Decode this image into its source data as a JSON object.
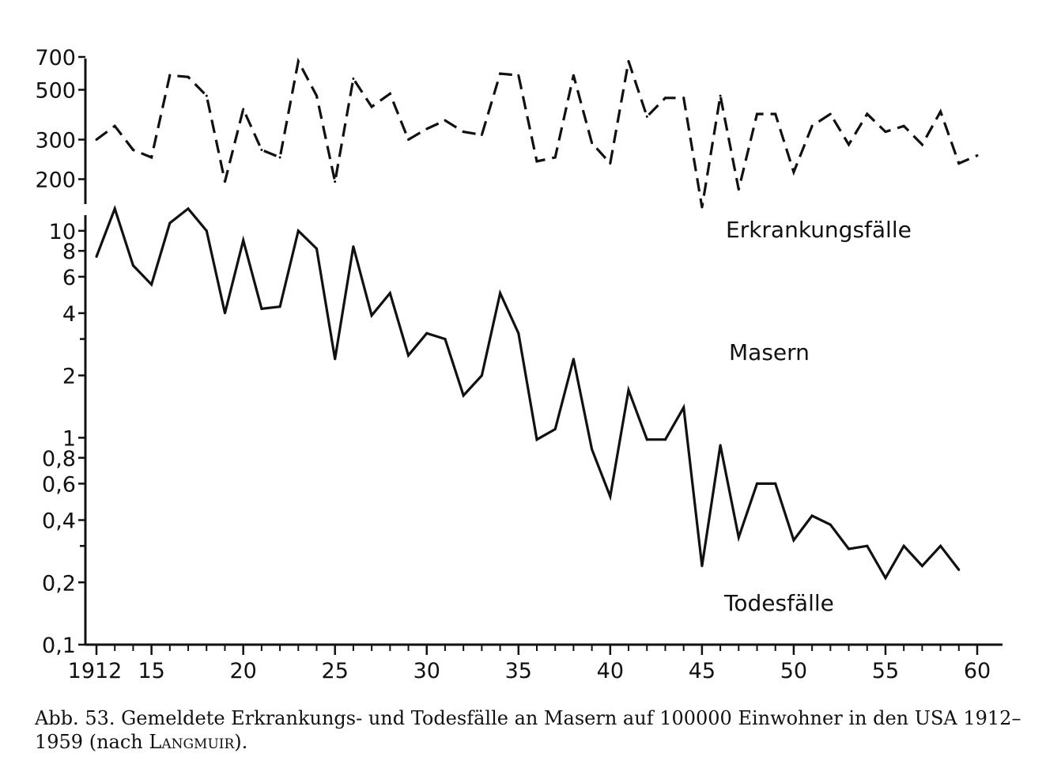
{
  "chart_data": {
    "type": "line",
    "x_axis": {
      "ticks": [
        1912,
        1915,
        1920,
        1925,
        1930,
        1935,
        1940,
        1945,
        1950,
        1955,
        1960
      ],
      "tick_labels": [
        "1912",
        "15",
        "20",
        "25",
        "30",
        "35",
        "40",
        "45",
        "50",
        "55",
        "60"
      ],
      "minor_ticks": [
        1913,
        1914,
        1916,
        1917,
        1918,
        1919,
        1921,
        1922,
        1923,
        1924,
        1926,
        1927,
        1928,
        1929,
        1931,
        1932,
        1933,
        1934,
        1936,
        1937,
        1938,
        1939,
        1941,
        1942,
        1943,
        1944,
        1946,
        1947,
        1948,
        1949,
        1951,
        1952,
        1953,
        1954,
        1956,
        1957,
        1958,
        1959
      ],
      "range": [
        1912,
        1960
      ]
    },
    "upper_panel": {
      "scale": "log",
      "range": [
        150,
        700
      ],
      "ticks": [
        200,
        300,
        500,
        700
      ],
      "tick_labels": [
        "200",
        "300",
        "500",
        "700"
      ],
      "series": {
        "name": "Erkrankungsfälle",
        "style": "dashed",
        "x": [
          1912,
          1913,
          1914,
          1915,
          1916,
          1917,
          1918,
          1919,
          1920,
          1921,
          1922,
          1923,
          1924,
          1925,
          1926,
          1927,
          1928,
          1929,
          1930,
          1931,
          1932,
          1933,
          1934,
          1935,
          1936,
          1937,
          1938,
          1939,
          1940,
          1941,
          1942,
          1943,
          1944,
          1945,
          1946,
          1947,
          1948,
          1949,
          1950,
          1951,
          1952,
          1953,
          1954,
          1955,
          1956,
          1957,
          1958,
          1959,
          1960
        ],
        "y": [
          300,
          345,
          270,
          250,
          580,
          570,
          470,
          195,
          410,
          270,
          250,
          670,
          470,
          195,
          560,
          420,
          480,
          300,
          335,
          365,
          325,
          315,
          590,
          580,
          240,
          250,
          580,
          290,
          235,
          670,
          380,
          460,
          460,
          150,
          470,
          180,
          390,
          390,
          215,
          345,
          390,
          285,
          390,
          325,
          345,
          285,
          400,
          235,
          255
        ]
      }
    },
    "lower_panel": {
      "scale": "log",
      "range": [
        0.1,
        13
      ],
      "ticks": [
        0.1,
        0.2,
        0.4,
        0.6,
        0.8,
        1,
        2,
        4,
        6,
        8,
        10
      ],
      "tick_labels": [
        "0,1",
        "0,2",
        "0,4",
        "0,6",
        "0,8",
        "1",
        "2",
        "4",
        "6",
        "8",
        "10"
      ],
      "minor_ticks": [
        0.3,
        3
      ],
      "title": "Masern",
      "series": {
        "name": "Todesfälle",
        "style": "solid",
        "x": [
          1912,
          1913,
          1914,
          1915,
          1916,
          1917,
          1918,
          1919,
          1920,
          1921,
          1922,
          1923,
          1924,
          1925,
          1926,
          1927,
          1928,
          1929,
          1930,
          1931,
          1932,
          1933,
          1934,
          1935,
          1936,
          1937,
          1938,
          1939,
          1940,
          1941,
          1942,
          1943,
          1944,
          1945,
          1946,
          1947,
          1948,
          1949,
          1950,
          1951,
          1952,
          1953,
          1954,
          1955,
          1956,
          1957,
          1958,
          1959
        ],
        "y": [
          7.5,
          12.8,
          6.8,
          5.5,
          10.9,
          12.8,
          10.0,
          4.0,
          9.0,
          4.2,
          4.3,
          10.0,
          8.2,
          2.4,
          8.4,
          3.9,
          5.0,
          2.5,
          3.2,
          3.0,
          1.6,
          2.0,
          5.0,
          3.2,
          0.98,
          1.1,
          2.4,
          0.88,
          0.52,
          1.7,
          0.98,
          0.98,
          1.4,
          0.24,
          0.92,
          0.33,
          0.6,
          0.6,
          0.32,
          0.42,
          0.38,
          0.29,
          0.3,
          0.21,
          0.3,
          0.24,
          0.3,
          0.23
        ]
      }
    }
  },
  "caption": {
    "text": "Abb. 53. Gemeldete Erkrankungs- und Todesfälle an Masern auf 100000 Einwohner in den USA 1912–1959 (nach ",
    "author": "Langmuir",
    "end": ")."
  }
}
